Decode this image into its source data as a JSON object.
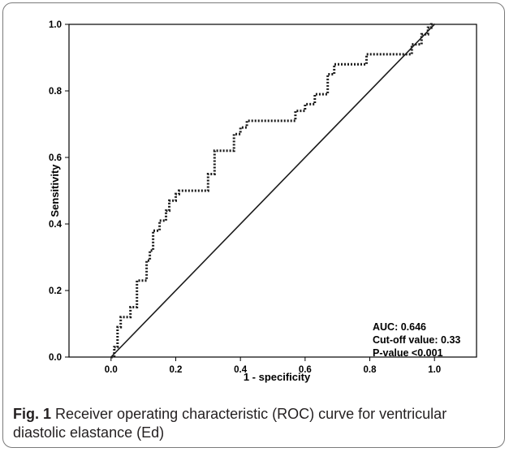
{
  "caption": {
    "label": "Fig. 1",
    "text": "Receiver operating characteristic (ROC) curve for ventricular diastolic elastance (Ed)"
  },
  "colors": {
    "curve": "#1a1a1a",
    "axis": "#000000",
    "frame": "#7a7a7a"
  },
  "annotations": {
    "auc": "AUC: 0.646",
    "cutoff": "Cut-off value: 0.33",
    "pvalue": "P-value <0.001"
  },
  "chart_data": {
    "type": "line",
    "title": "",
    "xlabel": "1 - specificity",
    "ylabel": "Sensitivity",
    "xlim": [
      -0.13,
      1.13
    ],
    "ylim": [
      0,
      1
    ],
    "xticks": [
      "0.0",
      "0.2",
      "0.4",
      "0.6",
      "0.8",
      "1.0"
    ],
    "yticks": [
      "0.0",
      "0.2",
      "0.4",
      "0.6",
      "0.8",
      "1.0"
    ],
    "grid": false,
    "series": [
      {
        "style": "dotted",
        "x": [
          0.0,
          0.01,
          0.01,
          0.02,
          0.02,
          0.03,
          0.03,
          0.06,
          0.06,
          0.08,
          0.08,
          0.11,
          0.11,
          0.12,
          0.12,
          0.13,
          0.13,
          0.15,
          0.15,
          0.17,
          0.17,
          0.18,
          0.18,
          0.2,
          0.2,
          0.21,
          0.21,
          0.22,
          0.22,
          0.3,
          0.3,
          0.32,
          0.32,
          0.34,
          0.34,
          0.38,
          0.38,
          0.4,
          0.4,
          0.42,
          0.42,
          0.57,
          0.57,
          0.6,
          0.6,
          0.63,
          0.63,
          0.67,
          0.67,
          0.69,
          0.69,
          0.72,
          0.72,
          0.79,
          0.79,
          0.93,
          0.93,
          0.96,
          0.96,
          0.98,
          0.98,
          0.99,
          0.99,
          1.0
        ],
        "y": [
          0.0,
          0.0,
          0.03,
          0.03,
          0.09,
          0.09,
          0.12,
          0.12,
          0.15,
          0.15,
          0.23,
          0.23,
          0.29,
          0.29,
          0.32,
          0.32,
          0.38,
          0.38,
          0.41,
          0.41,
          0.44,
          0.44,
          0.47,
          0.47,
          0.49,
          0.49,
          0.5,
          0.5,
          0.5,
          0.5,
          0.55,
          0.55,
          0.62,
          0.62,
          0.62,
          0.62,
          0.67,
          0.67,
          0.69,
          0.69,
          0.71,
          0.71,
          0.74,
          0.74,
          0.76,
          0.76,
          0.79,
          0.79,
          0.85,
          0.85,
          0.88,
          0.88,
          0.88,
          0.88,
          0.91,
          0.91,
          0.94,
          0.94,
          0.97,
          0.97,
          0.99,
          0.99,
          1.0,
          1.0
        ]
      },
      {
        "style": "solid",
        "x": [
          0.0,
          1.0
        ],
        "y": [
          0.0,
          1.0
        ]
      }
    ]
  }
}
